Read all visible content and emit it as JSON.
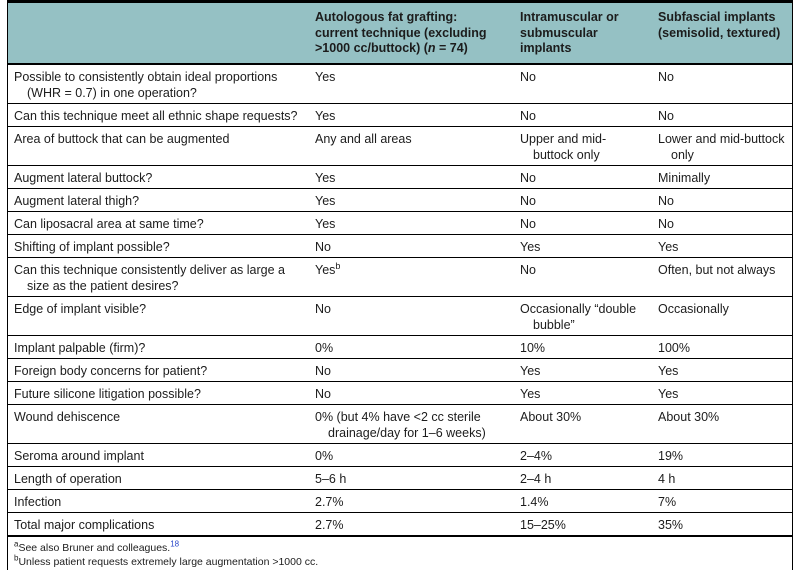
{
  "colors": {
    "header_bg": "#95c1c4",
    "border": "#000000",
    "text": "#1c1c1c",
    "reference_link": "#2946c8"
  },
  "header": {
    "col1": "",
    "col2": {
      "lines": [
        "Autologous fat grafting:",
        "current technique (excluding"
      ],
      "line3_pre": ">1000 cc/buttock) (",
      "line3_italic": "n",
      "line3_post": " = 74)"
    },
    "col3": {
      "lines": [
        "Intramuscular or",
        "submuscular",
        "implants"
      ]
    },
    "col4": {
      "lines": [
        "Subfascial implants",
        "(semisolid, textured)"
      ]
    }
  },
  "rows": [
    {
      "label": [
        "Possible to consistently obtain ideal proportions",
        "(WHR = 0.7) in one operation?"
      ],
      "fat": "Yes",
      "intramuscular": "No",
      "subfascial": "No"
    },
    {
      "label": "Can this technique meet all ethnic shape requests?",
      "fat": "Yes",
      "intramuscular": "No",
      "subfascial": "No"
    },
    {
      "label": "Area of buttock that can be augmented",
      "fat": "Any and all areas",
      "intramuscular": [
        "Upper and mid-",
        "buttock only"
      ],
      "subfascial": [
        "Lower and mid-buttock",
        "only"
      ]
    },
    {
      "label": "Augment lateral buttock?",
      "fat": "Yes",
      "intramuscular": "No",
      "subfascial": "Minimally"
    },
    {
      "label": "Augment lateral thigh?",
      "fat": "Yes",
      "intramuscular": "No",
      "subfascial": "No"
    },
    {
      "label": "Can liposacral area at same time?",
      "fat": "Yes",
      "intramuscular": "No",
      "subfascial": "No"
    },
    {
      "label": "Shifting of implant possible?",
      "fat": "No",
      "intramuscular": "Yes",
      "subfascial": "Yes"
    },
    {
      "label": [
        "Can this technique consistently deliver as large a",
        "size as the patient desires?"
      ],
      "fat": {
        "text": "Yes",
        "sup": "b"
      },
      "intramuscular": "No",
      "subfascial": "Often, but not always"
    },
    {
      "label": "Edge of implant visible?",
      "fat": "No",
      "intramuscular": [
        "Occasionally “double",
        "bubble”"
      ],
      "subfascial": "Occasionally"
    },
    {
      "label": "Implant palpable (firm)?",
      "fat": "0%",
      "intramuscular": "10%",
      "subfascial": "100%"
    },
    {
      "label": "Foreign body concerns for patient?",
      "fat": "No",
      "intramuscular": "Yes",
      "subfascial": "Yes"
    },
    {
      "label": "Future silicone litigation possible?",
      "fat": "No",
      "intramuscular": "Yes",
      "subfascial": "Yes"
    },
    {
      "label": "Wound dehiscence",
      "fat": [
        "0% (but 4% have <2 cc sterile",
        "drainage/day for 1–6 weeks)"
      ],
      "intramuscular": "About 30%",
      "subfascial": "About 30%"
    },
    {
      "label": "Seroma around implant",
      "fat": "0%",
      "intramuscular": "2–4%",
      "subfascial": "19%"
    },
    {
      "label": "Length of operation",
      "fat": "5–6 h",
      "intramuscular": "2–4 h",
      "subfascial": "4 h"
    },
    {
      "label": "Infection",
      "fat": "2.7%",
      "intramuscular": "1.4%",
      "subfascial": "7%"
    },
    {
      "label": "Total major complications",
      "fat": "2.7%",
      "intramuscular": "15–25%",
      "subfascial": "35%"
    }
  ],
  "footnotes": [
    {
      "marker": "a",
      "text": "See also Bruner and colleagues.",
      "ref": "18"
    },
    {
      "marker": "b",
      "text": "Unless patient requests extremely large augmentation >1000 cc."
    }
  ]
}
